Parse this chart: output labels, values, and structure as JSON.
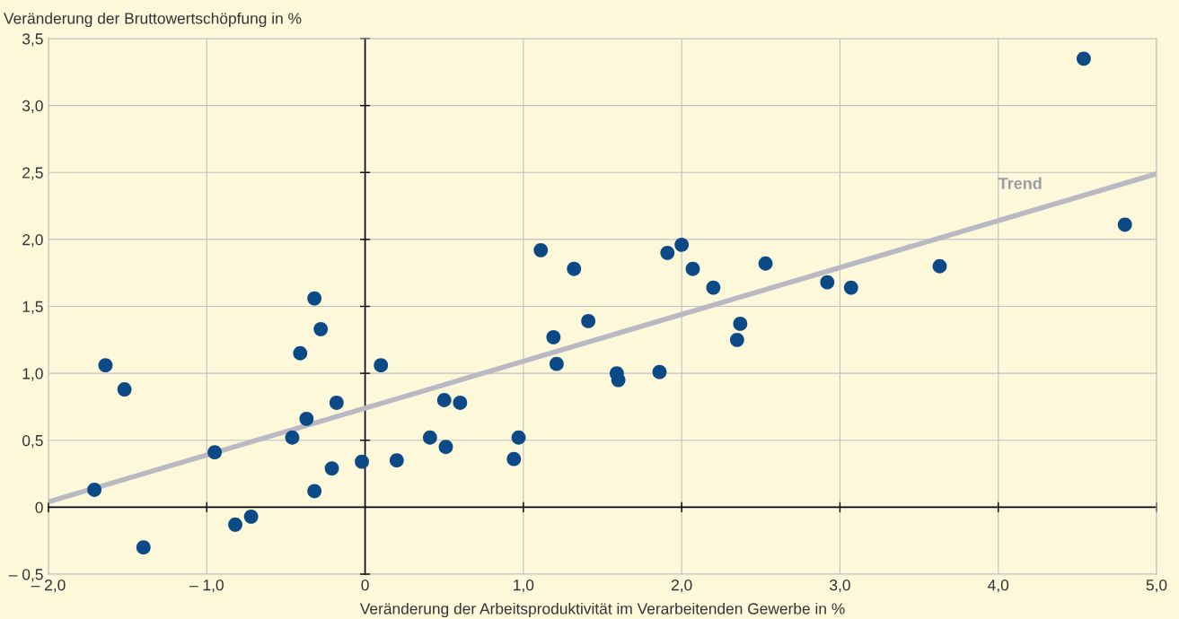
{
  "chart_data": {
    "type": "scatter",
    "xlabel": "Veränderung der Arbeitsproduktivität im Verarbeitenden Gewerbe in %",
    "ylabel": "Veränderung der Bruttowertschöpfung in %",
    "xlim": [
      -2,
      5
    ],
    "ylim": [
      -0.5,
      3.5
    ],
    "xticks": [
      {
        "value": -2,
        "label": "– 2,0"
      },
      {
        "value": -1,
        "label": "– 1,0"
      },
      {
        "value": 0,
        "label": "0"
      },
      {
        "value": 1,
        "label": "1,0"
      },
      {
        "value": 2,
        "label": "2,0"
      },
      {
        "value": 3,
        "label": "3,0"
      },
      {
        "value": 4,
        "label": "4,0"
      },
      {
        "value": 5,
        "label": "5,0"
      }
    ],
    "yticks": [
      {
        "value": -0.5,
        "label": "– 0,5"
      },
      {
        "value": 0,
        "label": "0"
      },
      {
        "value": 0.5,
        "label": "0,5"
      },
      {
        "value": 1,
        "label": "1,0"
      },
      {
        "value": 1.5,
        "label": "1,5"
      },
      {
        "value": 2,
        "label": "2,0"
      },
      {
        "value": 2.5,
        "label": "2,5"
      },
      {
        "value": 3,
        "label": "3,0"
      },
      {
        "value": 3.5,
        "label": "3,5"
      }
    ],
    "grid": true,
    "series": [
      {
        "type": "line",
        "name": "Trend",
        "marker": "none",
        "color": "#b8b9c2",
        "x": [
          -2,
          5
        ],
        "values": [
          0.04,
          2.49
        ]
      },
      {
        "marker": "circle",
        "color": "#0b4a86",
        "x": [
          -1.71,
          -1.64,
          -1.52,
          -1.4,
          -0.95,
          -0.82,
          -0.72,
          -0.46,
          -0.41,
          -0.37,
          -0.32,
          -0.32,
          -0.28,
          -0.21,
          -0.18,
          -0.02,
          0.1,
          0.2,
          0.41,
          0.5,
          0.51,
          0.6,
          0.94,
          0.97,
          1.11,
          1.19,
          1.21,
          1.32,
          1.41,
          1.59,
          1.6,
          1.86,
          1.91,
          2.0,
          2.07,
          2.2,
          2.35,
          2.37,
          2.53,
          2.92,
          3.07,
          3.63,
          4.54,
          4.8
        ],
        "values": [
          0.13,
          1.06,
          0.88,
          -0.3,
          0.41,
          -0.13,
          -0.07,
          0.52,
          1.15,
          0.66,
          1.56,
          0.12,
          1.33,
          0.29,
          0.78,
          0.34,
          1.06,
          0.35,
          0.52,
          0.8,
          0.45,
          0.78,
          0.36,
          0.52,
          1.92,
          1.27,
          1.07,
          1.78,
          1.39,
          1.0,
          0.95,
          1.01,
          1.9,
          1.96,
          1.78,
          1.64,
          1.25,
          1.37,
          1.82,
          1.68,
          1.64,
          1.8,
          3.35,
          2.11
        ]
      }
    ]
  }
}
